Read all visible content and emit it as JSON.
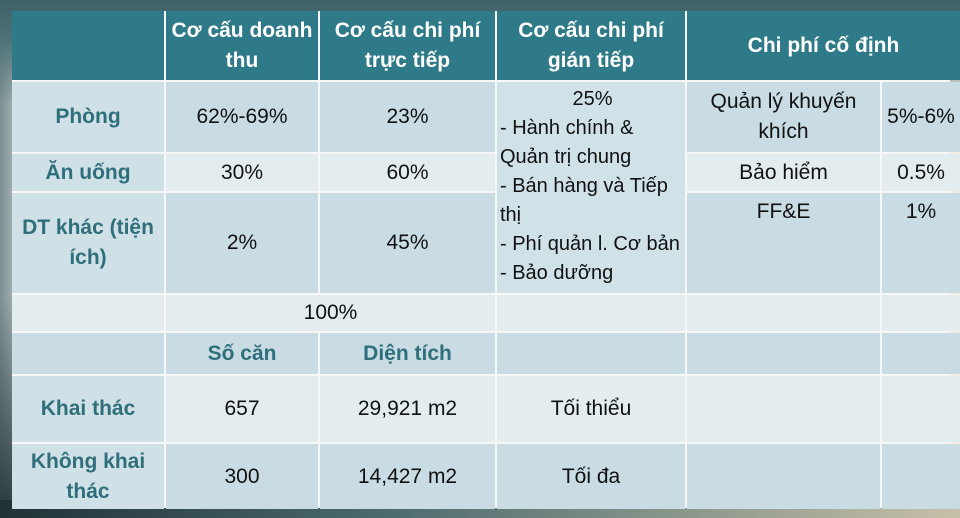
{
  "headers": [
    "",
    "Cơ cấu doanh thu",
    "Cơ cấu chi phí trực tiếp",
    "Cơ cấu chi phí gián tiếp",
    "Chi phí cố định"
  ],
  "rows": [
    {
      "label": "Phòng",
      "revenue": "62%-69%",
      "direct": "23%",
      "fixed_item": "Quản lý khuyến khích",
      "fixed_value": "5%-6%"
    },
    {
      "label": "Ăn uống",
      "revenue": "30%",
      "direct": "60%",
      "fixed_item": "Bảo hiểm",
      "fixed_value": "0.5%"
    },
    {
      "label": "DT khác (tiện ích)",
      "revenue": "2%",
      "direct": "45%",
      "fixed_item": "FF&E",
      "fixed_value": "1%"
    }
  ],
  "indirect": {
    "total": "25%",
    "items": [
      "- Hành chính &",
      "Quản trị chung",
      "- Bán hàng và Tiếp",
      "thị",
      "- Phí quản l. Cơ bản",
      "- Bảo dưỡng"
    ]
  },
  "total_revenue": "100%",
  "units": {
    "headers": [
      "Số căn",
      "Diện tích"
    ],
    "rows": [
      {
        "label": "Khai thác",
        "count": "657",
        "area": "29,921 m2",
        "note": "Tối thiểu"
      },
      {
        "label": "Không khai thác",
        "count": "300",
        "area": "14,427 m2",
        "note": "Tối đa"
      }
    ]
  }
}
